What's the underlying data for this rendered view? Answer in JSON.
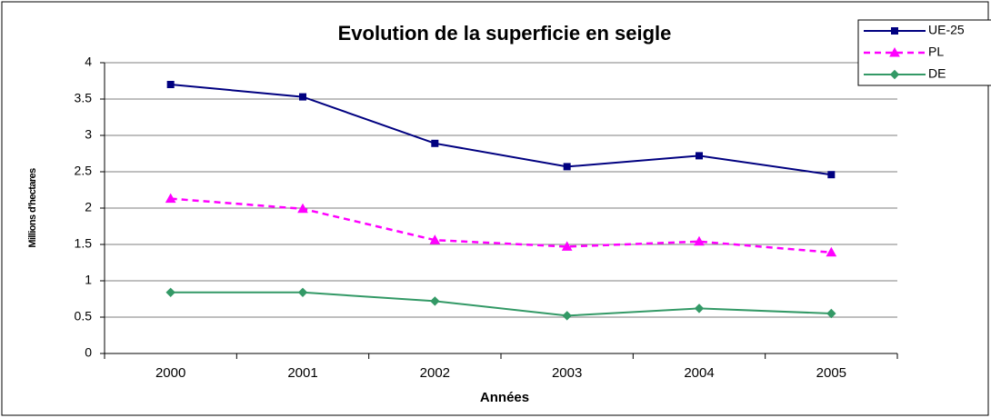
{
  "chart_data": {
    "type": "line",
    "title": "Evolution de la superficie en seigle",
    "x_label": "Années",
    "y_label": "Millions d'hectares",
    "categories": [
      "2000",
      "2001",
      "2002",
      "2003",
      "2004",
      "2005"
    ],
    "series": [
      {
        "name": "UE-25",
        "color": "#000080",
        "marker": "square",
        "dash": false,
        "values": [
          3.7,
          3.53,
          2.89,
          2.57,
          2.72,
          2.46
        ]
      },
      {
        "name": "PL",
        "color": "#ff00ff",
        "marker": "triangle",
        "dash": true,
        "values": [
          2.13,
          1.99,
          1.56,
          1.47,
          1.54,
          1.39
        ]
      },
      {
        "name": "DE",
        "color": "#339966",
        "marker": "diamond",
        "dash": false,
        "values": [
          0.84,
          0.84,
          0.72,
          0.52,
          0.62,
          0.55
        ]
      }
    ],
    "ylim": [
      0,
      4
    ],
    "yticks": [
      0,
      0.5,
      1,
      1.5,
      2,
      2.5,
      3,
      3.5,
      4
    ],
    "grid": true,
    "legend": "top-right"
  }
}
